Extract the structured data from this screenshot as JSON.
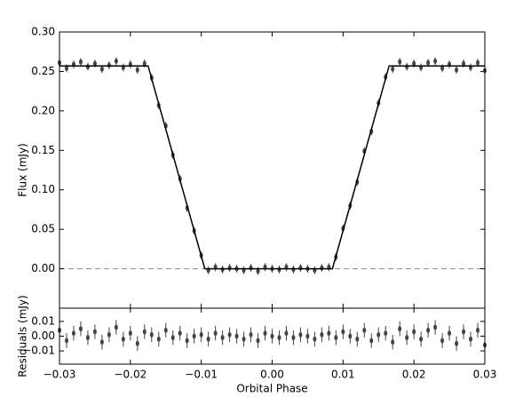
{
  "chart_data": [
    {
      "type": "errorbar",
      "ylabel": "Flux (mJy)",
      "x": [
        -0.03,
        -0.029,
        -0.028,
        -0.027,
        -0.026,
        -0.025,
        -0.024,
        -0.023,
        -0.022,
        -0.021,
        -0.02,
        -0.019,
        -0.018,
        -0.017,
        -0.016,
        -0.015,
        -0.014,
        -0.013,
        -0.012,
        -0.011,
        -0.01,
        -0.009,
        -0.008,
        -0.007,
        -0.006,
        -0.005,
        -0.004,
        -0.003,
        -0.002,
        -0.001,
        0,
        0.001,
        0.002,
        0.003,
        0.004,
        0.005,
        0.006,
        0.007,
        0.008,
        0.009,
        0.01,
        0.011,
        0.012,
        0.013,
        0.014,
        0.015,
        0.016,
        0.017,
        0.018,
        0.019,
        0.02,
        0.021,
        0.022,
        0.023,
        0.024,
        0.025,
        0.026,
        0.027,
        0.028,
        0.029,
        0.03
      ],
      "values": [
        0.261,
        0.254,
        0.259,
        0.262,
        0.256,
        0.26,
        0.253,
        0.258,
        0.263,
        0.255,
        0.259,
        0.252,
        0.26,
        0.242,
        0.207,
        0.181,
        0.144,
        0.114,
        0.077,
        0.048,
        0.017,
        -0.002,
        0.002,
        -0.001,
        0.001,
        0,
        -0.002,
        0.001,
        -0.003,
        0.002,
        0,
        -0.001,
        0.002,
        -0.001,
        0.001,
        0,
        -0.002,
        0.001,
        0.002,
        0.015,
        0.051,
        0.08,
        0.11,
        0.149,
        0.174,
        0.21,
        0.243,
        0.253,
        0.262,
        0.256,
        0.26,
        0.255,
        0.261,
        0.263,
        0.254,
        0.259,
        0.252,
        0.26,
        0.255,
        0.261,
        0.251
      ],
      "error": 0.005,
      "color": "#444444",
      "model": {
        "x": [
          -0.03,
          -0.0175,
          -0.0095,
          0.0085,
          0.0165,
          0.03
        ],
        "values": [
          0.257,
          0.257,
          0,
          0,
          0.257,
          0.257
        ],
        "color": "#000000"
      },
      "zero_line": true,
      "xlim": [
        -0.03,
        0.03
      ],
      "ylim": [
        -0.05,
        0.3
      ],
      "yticks": [
        {
          "value": 0,
          "label": "0.00"
        },
        0.05,
        {
          "value": 0.1,
          "label": "0.10"
        },
        0.15,
        {
          "value": 0.2,
          "label": "0.20"
        },
        0.25,
        {
          "value": 0.3,
          "label": "0.30"
        }
      ]
    },
    {
      "type": "errorbar",
      "ylabel": "Residuals (mJy)",
      "xlabel": "Orbital Phase",
      "x": [
        -0.03,
        -0.029,
        -0.028,
        -0.027,
        -0.026,
        -0.025,
        -0.024,
        -0.023,
        -0.022,
        -0.021,
        -0.02,
        -0.019,
        -0.018,
        -0.017,
        -0.016,
        -0.015,
        -0.014,
        -0.013,
        -0.012,
        -0.011,
        -0.01,
        -0.009,
        -0.008,
        -0.007,
        -0.006,
        -0.005,
        -0.004,
        -0.003,
        -0.002,
        -0.001,
        0,
        0.001,
        0.002,
        0.003,
        0.004,
        0.005,
        0.006,
        0.007,
        0.008,
        0.009,
        0.01,
        0.011,
        0.012,
        0.013,
        0.014,
        0.015,
        0.016,
        0.017,
        0.018,
        0.019,
        0.02,
        0.021,
        0.022,
        0.023,
        0.024,
        0.025,
        0.026,
        0.027,
        0.028,
        0.029,
        0.03
      ],
      "values": [
        0.004,
        -0.003,
        0.002,
        0.005,
        -0.001,
        0.003,
        -0.004,
        0.001,
        0.006,
        -0.002,
        0.002,
        -0.005,
        0.003,
        0.001,
        -0.002,
        0.004,
        -0.001,
        0.002,
        -0.003,
        0,
        0.001,
        -0.002,
        0.002,
        -0.001,
        0.001,
        0,
        -0.002,
        0.001,
        -0.003,
        0.002,
        0,
        -0.001,
        0.002,
        -0.001,
        0.001,
        0,
        -0.002,
        0.001,
        0.002,
        -0.001,
        0.003,
        0,
        -0.002,
        0.004,
        -0.003,
        0.001,
        0.002,
        -0.004,
        0.005,
        -0.001,
        0.003,
        -0.002,
        0.004,
        0.006,
        -0.003,
        0.002,
        -0.005,
        0.003,
        -0.002,
        0.004,
        -0.006
      ],
      "error": 0.005,
      "color": "#444444",
      "xlim": [
        -0.03,
        0.03
      ],
      "ylim": [
        -0.019,
        0.019
      ],
      "yticks": [
        {
          "value": -0.01,
          "label": "−0.01"
        },
        {
          "value": 0,
          "label": "0.00"
        },
        0.01
      ],
      "xticks": [
        {
          "value": -0.03,
          "label": "−0.03"
        },
        {
          "value": -0.02,
          "label": "−0.02"
        },
        {
          "value": -0.01,
          "label": "−0.01"
        },
        {
          "value": 0,
          "label": "0.00"
        },
        0.01,
        0.02,
        0.03
      ]
    }
  ]
}
